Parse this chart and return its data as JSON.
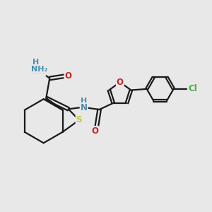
{
  "background_color": "#e8e8e8",
  "bond_color": "#1a1a1a",
  "bond_width": 1.6,
  "atom_colors": {
    "N": "#4a90b0",
    "O": "#cc2222",
    "S": "#c8c820",
    "Cl": "#3db33d",
    "C": "#1a1a1a",
    "H": "#4a90b0"
  },
  "font_size_atom": 8.5,
  "font_size_small": 7.5
}
